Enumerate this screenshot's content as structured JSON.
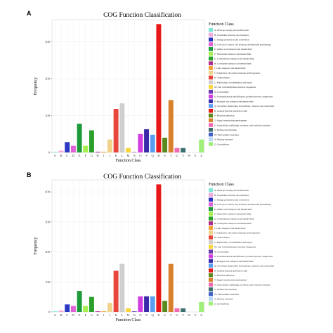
{
  "chart_data": [
    {
      "type": "bar",
      "panel_label": "A",
      "title": "COG Function Classification",
      "xlabel": "Function Class",
      "ylabel": "Frequency",
      "ylim": [
        0,
        360
      ],
      "yticks": [
        0,
        100,
        200,
        300
      ],
      "grid": true,
      "legend_position": "right",
      "legend_title": "Function Class",
      "categories": [
        "A",
        "B",
        "C",
        "D",
        "E",
        "F",
        "G",
        "H",
        "I",
        "J",
        "K",
        "L",
        "M",
        "N",
        "O",
        "P",
        "Q",
        "R",
        "S",
        "T",
        "U",
        "V",
        "W",
        "Y",
        "Z"
      ],
      "values": [
        2,
        5,
        28,
        18,
        78,
        18,
        60,
        2,
        2,
        35,
        118,
        133,
        12,
        1,
        50,
        63,
        48,
        348,
        40,
        142,
        12,
        12,
        0,
        0,
        35
      ]
    },
    {
      "type": "bar",
      "panel_label": "B",
      "title": "COG Function Classification",
      "xlabel": "Function Class",
      "ylabel": "Frequency",
      "ylim": [
        0,
        440
      ],
      "yticks": [
        0,
        100,
        200,
        300,
        400
      ],
      "grid": true,
      "legend_position": "right",
      "legend_title": "Function Class",
      "categories": [
        "A",
        "B",
        "C",
        "D",
        "E",
        "F",
        "G",
        "H",
        "I",
        "J",
        "K",
        "L",
        "M",
        "N",
        "O",
        "P",
        "Q",
        "R",
        "S",
        "T",
        "U",
        "V",
        "W",
        "Y",
        "Z"
      ],
      "values": [
        2,
        5,
        25,
        20,
        70,
        20,
        50,
        2,
        2,
        30,
        137,
        160,
        12,
        2,
        52,
        52,
        52,
        425,
        37,
        160,
        12,
        12,
        0,
        0,
        33
      ]
    }
  ],
  "legend_items": [
    "A: RNA processing and modification",
    "B: Chromatin structure and dynamics",
    "C: Energy production and conversion",
    "D: Cell cycle control, cell division, chromosome partitioning",
    "E: Amino acid transport and metabolism",
    "F: Nucleotide transport and metabolism",
    "G: Carbohydrate transport and metabolism",
    "H: Coenzyme transport and metabolism",
    "I: Lipid transport and metabolism",
    "J: Translation, ribosomal structure and biogenesis",
    "K: Transcription",
    "L: Replication, recombination and repair",
    "M: Cell wall/membrane/envelope biogenesis",
    "N: Cell motility",
    "O: Posttranslational modification, protein turnover, chaperones",
    "P: Inorganic ion transport and metabolism",
    "Q: Secondary metabolites biosynthesis, transport and catabolism",
    "R: General function prediction only",
    "S: Function unknown",
    "T: Signal transduction mechanisms",
    "U: Intracellular trafficking, secretion, and vesicular transport",
    "V: Defense mechanisms",
    "W: Extracellular structures",
    "Y: Nuclear structure",
    "Z: Cytoskeleton"
  ],
  "colors": [
    "#7ee8dc",
    "#f2a9dc",
    "#2a38c4",
    "#e060d8",
    "#1c9a3a",
    "#a6f04e",
    "#2aa02a",
    "#b02a8c",
    "#f2a030",
    "#f0d28a",
    "#e8453c",
    "#cfcfcf",
    "#f7d63c",
    "#6a3ab2",
    "#d040e0",
    "#3a2ca8",
    "#5aa0f0",
    "#e81818",
    "#5a8a1e",
    "#d8802a",
    "#f06ab2",
    "#3c7070",
    "#4060c8",
    "#b8d8f8",
    "#9ef07a"
  ]
}
